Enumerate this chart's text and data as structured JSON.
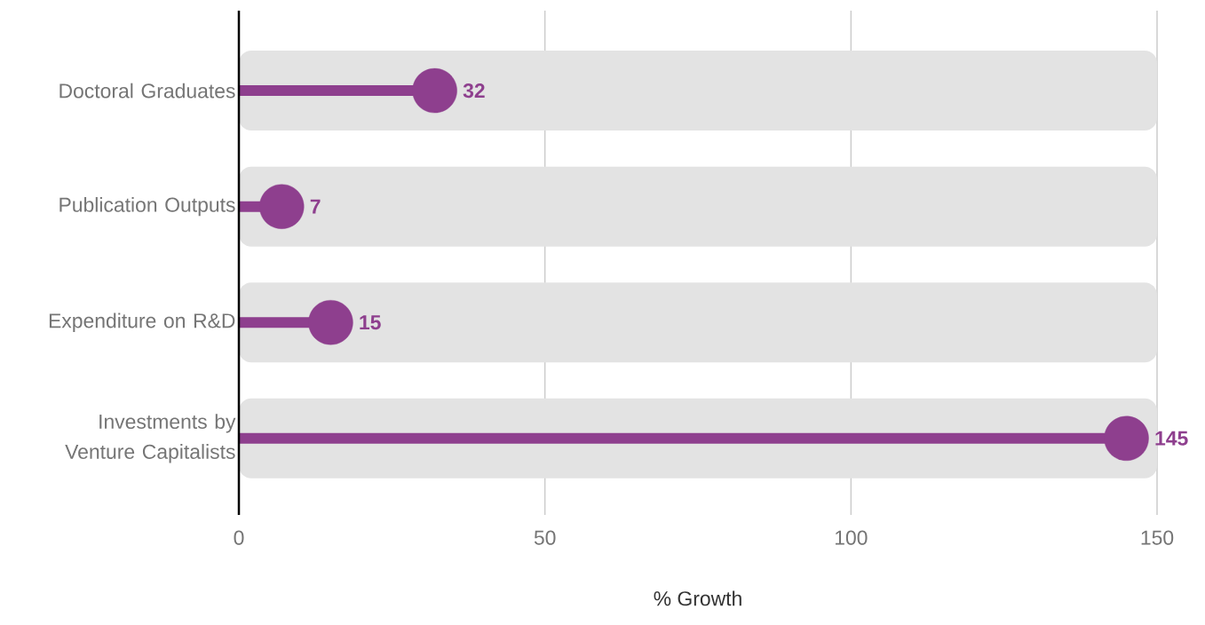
{
  "chart_data": {
    "type": "lollipop",
    "orientation": "horizontal",
    "xlabel": "% Growth",
    "categories": [
      "Doctoral Graduates",
      "Publication Outputs",
      "Expenditure on R&D",
      "Investments by Venture Capitalists"
    ],
    "series": [
      {
        "type": "bar",
        "color": "#e3e3e3",
        "values": [
          150,
          150,
          150,
          150
        ]
      },
      {
        "color": "#8e3f8e",
        "values": [
          32,
          7,
          15,
          145
        ],
        "value_labels": [
          "32",
          "7",
          "15",
          "145"
        ]
      }
    ],
    "xlim": [
      0,
      150
    ],
    "xticks": [
      0,
      50,
      100,
      150
    ],
    "grid": "x"
  }
}
